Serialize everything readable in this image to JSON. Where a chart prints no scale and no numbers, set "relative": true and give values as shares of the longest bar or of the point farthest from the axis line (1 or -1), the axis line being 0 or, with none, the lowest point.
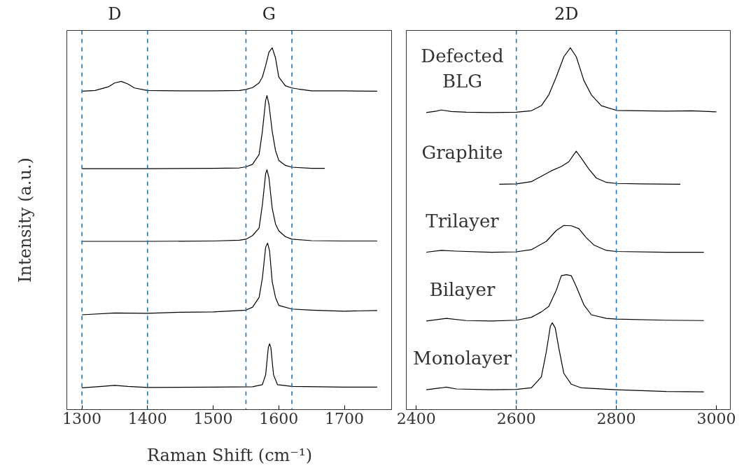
{
  "chart_data": [
    {
      "type": "line",
      "relative": true,
      "ylabel": "Intensity (a.u.)",
      "xlabel": "Raman Shift (cm⁻¹)",
      "xlim": [
        1277,
        1773
      ],
      "xticks": [
        1300,
        1400,
        1500,
        1600,
        1700
      ],
      "line_style": "solid",
      "marker": "none",
      "annotations": [
        "D",
        "G"
      ],
      "ref_lines": [
        {
          "axis": "x",
          "value": 1300,
          "color": "#1f77b4",
          "line_style": "dashed"
        },
        {
          "axis": "x",
          "value": 1400,
          "color": "#1f77b4",
          "line_style": "dashed"
        },
        {
          "axis": "x",
          "value": 1550,
          "color": "#1f77b4",
          "line_style": "dashed"
        },
        {
          "axis": "x",
          "value": 1620,
          "color": "#1f77b4",
          "line_style": "dashed"
        }
      ],
      "series": [
        {
          "color": "#000000",
          "x": [
            1300,
            1320,
            1340,
            1350,
            1360,
            1370,
            1380,
            1400,
            1450,
            1500,
            1540,
            1550,
            1560,
            1570,
            1575,
            1580,
            1585,
            1590,
            1595,
            1600,
            1610,
            1620,
            1630,
            1650,
            1700,
            1750
          ],
          "values": [
            0.88,
            0.882,
            0.892,
            0.903,
            0.907,
            0.9,
            0.889,
            0.882,
            0.881,
            0.881,
            0.882,
            0.885,
            0.89,
            0.903,
            0.919,
            0.951,
            0.988,
            1.0,
            0.972,
            0.919,
            0.895,
            0.889,
            0.886,
            0.881,
            0.881,
            0.88
          ]
        },
        {
          "color": "#000000",
          "x": [
            1300,
            1400,
            1500,
            1540,
            1550,
            1560,
            1570,
            1575,
            1580,
            1582,
            1585,
            1590,
            1595,
            1600,
            1610,
            1620,
            1650,
            1670
          ],
          "values": [
            0.666,
            0.666,
            0.667,
            0.668,
            0.671,
            0.678,
            0.705,
            0.769,
            0.855,
            0.868,
            0.844,
            0.769,
            0.716,
            0.689,
            0.675,
            0.67,
            0.667,
            0.667
          ]
        },
        {
          "color": "#000000",
          "x": [
            1300,
            1400,
            1500,
            1540,
            1550,
            1560,
            1570,
            1575,
            1580,
            1582,
            1585,
            1590,
            1595,
            1600,
            1610,
            1620,
            1650,
            1700,
            1750
          ],
          "values": [
            0.465,
            0.465,
            0.466,
            0.468,
            0.471,
            0.481,
            0.502,
            0.566,
            0.652,
            0.663,
            0.641,
            0.556,
            0.513,
            0.494,
            0.478,
            0.471,
            0.467,
            0.466,
            0.466
          ]
        },
        {
          "color": "#000000",
          "x": [
            1300,
            1350,
            1400,
            1450,
            1500,
            1550,
            1560,
            1570,
            1575,
            1580,
            1583,
            1586,
            1590,
            1595,
            1600,
            1620,
            1650,
            1700,
            1750
          ],
          "values": [
            0.262,
            0.267,
            0.266,
            0.269,
            0.27,
            0.275,
            0.283,
            0.31,
            0.363,
            0.449,
            0.46,
            0.438,
            0.353,
            0.31,
            0.288,
            0.278,
            0.275,
            0.272,
            0.274
          ]
        },
        {
          "color": "#000000",
          "x": [
            1300,
            1330,
            1350,
            1370,
            1400,
            1500,
            1560,
            1575,
            1580,
            1584,
            1586,
            1588,
            1592,
            1598,
            1620,
            1700,
            1750
          ],
          "values": [
            0.06,
            0.064,
            0.067,
            0.064,
            0.061,
            0.062,
            0.063,
            0.069,
            0.096,
            0.171,
            0.182,
            0.171,
            0.096,
            0.069,
            0.064,
            0.062,
            0.062
          ]
        }
      ]
    },
    {
      "type": "line",
      "relative": true,
      "xlim": [
        2380,
        3028
      ],
      "xticks": [
        2400,
        2600,
        2800,
        3000
      ],
      "line_style": "solid",
      "marker": "none",
      "annotations": [
        "2D"
      ],
      "ref_lines": [
        {
          "axis": "x",
          "value": 2600,
          "color": "#1f77b4",
          "line_style": "dashed"
        },
        {
          "axis": "x",
          "value": 2800,
          "color": "#1f77b4",
          "line_style": "dashed"
        }
      ],
      "series": [
        {
          "name": "Defected\nBLG",
          "color": "#000000",
          "x": [
            2420,
            2440,
            2450,
            2470,
            2500,
            2550,
            2600,
            2630,
            2650,
            2665,
            2680,
            2695,
            2708,
            2720,
            2735,
            2750,
            2770,
            2800,
            2850,
            2900,
            2950,
            3000
          ],
          "values": [
            0.821,
            0.825,
            0.828,
            0.824,
            0.822,
            0.821,
            0.822,
            0.826,
            0.84,
            0.87,
            0.92,
            0.975,
            1.0,
            0.975,
            0.91,
            0.87,
            0.84,
            0.827,
            0.826,
            0.825,
            0.826,
            0.823
          ]
        },
        {
          "name": "Graphite",
          "color": "#000000",
          "x": [
            2566,
            2600,
            2630,
            2650,
            2670,
            2690,
            2705,
            2715,
            2720,
            2730,
            2745,
            2760,
            2780,
            2800,
            2850,
            2928
          ],
          "values": [
            0.623,
            0.624,
            0.63,
            0.645,
            0.66,
            0.672,
            0.685,
            0.705,
            0.714,
            0.695,
            0.665,
            0.64,
            0.628,
            0.625,
            0.624,
            0.623
          ]
        },
        {
          "name": "Trilayer",
          "color": "#000000",
          "x": [
            2420,
            2450,
            2480,
            2550,
            2600,
            2630,
            2660,
            2680,
            2695,
            2710,
            2725,
            2740,
            2755,
            2780,
            2800,
            2900,
            2975
          ],
          "values": [
            0.435,
            0.44,
            0.438,
            0.435,
            0.436,
            0.442,
            0.465,
            0.495,
            0.509,
            0.508,
            0.5,
            0.475,
            0.455,
            0.44,
            0.437,
            0.435,
            0.435
          ]
        },
        {
          "name": "Bilayer",
          "color": "#000000",
          "x": [
            2420,
            2460,
            2500,
            2550,
            2600,
            2630,
            2650,
            2665,
            2680,
            2690,
            2700,
            2710,
            2720,
            2735,
            2750,
            2780,
            2800,
            2900,
            2975
          ],
          "values": [
            0.245,
            0.252,
            0.246,
            0.245,
            0.247,
            0.255,
            0.27,
            0.285,
            0.33,
            0.37,
            0.373,
            0.37,
            0.34,
            0.29,
            0.262,
            0.252,
            0.25,
            0.247,
            0.246
          ]
        },
        {
          "name": "Monolayer",
          "color": "#000000",
          "x": [
            2420,
            2450,
            2460,
            2480,
            2550,
            2600,
            2630,
            2650,
            2660,
            2668,
            2672,
            2678,
            2685,
            2695,
            2710,
            2730,
            2800,
            2900,
            2975
          ],
          "values": [
            0.055,
            0.06,
            0.062,
            0.057,
            0.055,
            0.056,
            0.06,
            0.09,
            0.16,
            0.23,
            0.24,
            0.225,
            0.17,
            0.1,
            0.07,
            0.06,
            0.055,
            0.05,
            0.049
          ]
        }
      ]
    }
  ]
}
